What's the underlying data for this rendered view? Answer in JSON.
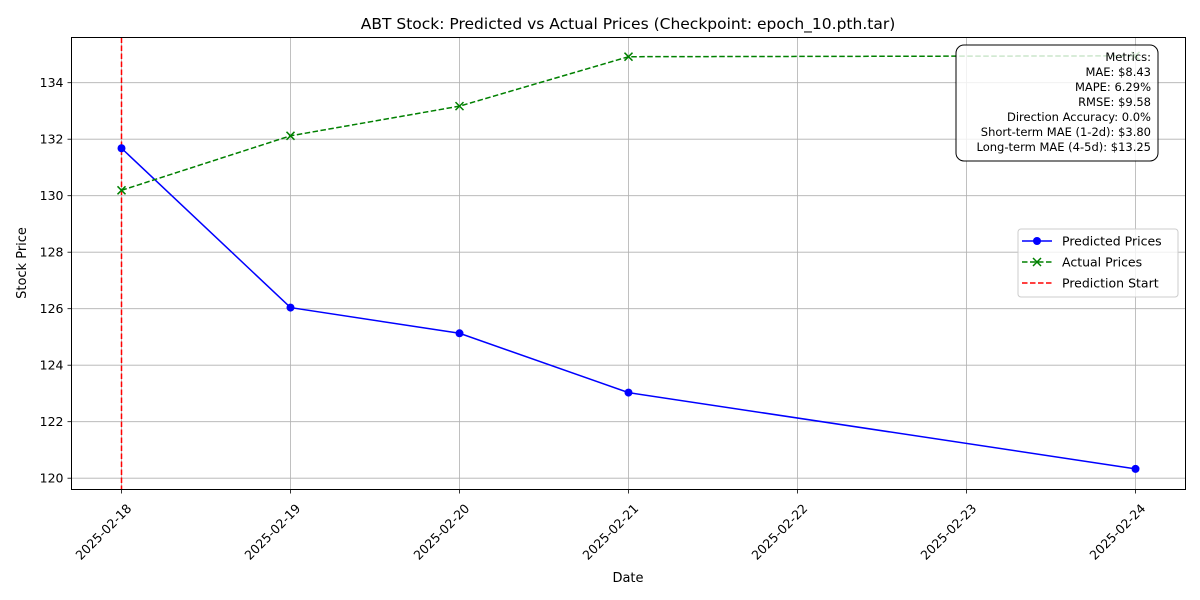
{
  "chart_data": {
    "type": "line",
    "title": "ABT Stock: Predicted vs Actual Prices (Checkpoint: epoch_10.pth.tar)",
    "xlabel": "Date",
    "ylabel": "Stock Price",
    "ylim": [
      119.6,
      135.6
    ],
    "x_ticks": [
      "2025-02-18",
      "2025-02-19",
      "2025-02-20",
      "2025-02-21",
      "2025-02-22",
      "2025-02-23",
      "2025-02-24"
    ],
    "y_ticks": [
      120,
      122,
      124,
      126,
      128,
      130,
      132,
      134
    ],
    "grid": true,
    "legend_position": "center-right",
    "series": [
      {
        "name": "Predicted Prices",
        "color": "#0000ff",
        "line_style": "solid",
        "marker": "circle",
        "points": [
          {
            "x": "2025-02-18",
            "y": 131.68
          },
          {
            "x": "2025-02-19",
            "y": 126.04
          },
          {
            "x": "2025-02-20",
            "y": 125.13
          },
          {
            "x": "2025-02-21",
            "y": 123.03
          },
          {
            "x": "2025-02-24",
            "y": 120.33
          }
        ]
      },
      {
        "name": "Actual Prices",
        "color": "#008000",
        "line_style": "dashed",
        "marker": "x",
        "points": [
          {
            "x": "2025-02-18",
            "y": 130.19
          },
          {
            "x": "2025-02-19",
            "y": 132.12
          },
          {
            "x": "2025-02-20",
            "y": 133.17
          },
          {
            "x": "2025-02-21",
            "y": 134.92
          },
          {
            "x": "2025-02-24",
            "y": 134.95
          }
        ]
      }
    ],
    "vertical_line": {
      "name": "Prediction Start",
      "x": "2025-02-18",
      "color": "#ff0000",
      "line_style": "dashed"
    },
    "metrics_box": {
      "position": "top-right",
      "lines": [
        "Metrics:",
        "MAE: $8.43",
        "MAPE: 6.29%",
        "RMSE: $9.58",
        "Direction Accuracy: 0.0%",
        "Short-term MAE (1-2d): $3.80",
        "Long-term MAE (4-5d): $13.25"
      ]
    }
  }
}
